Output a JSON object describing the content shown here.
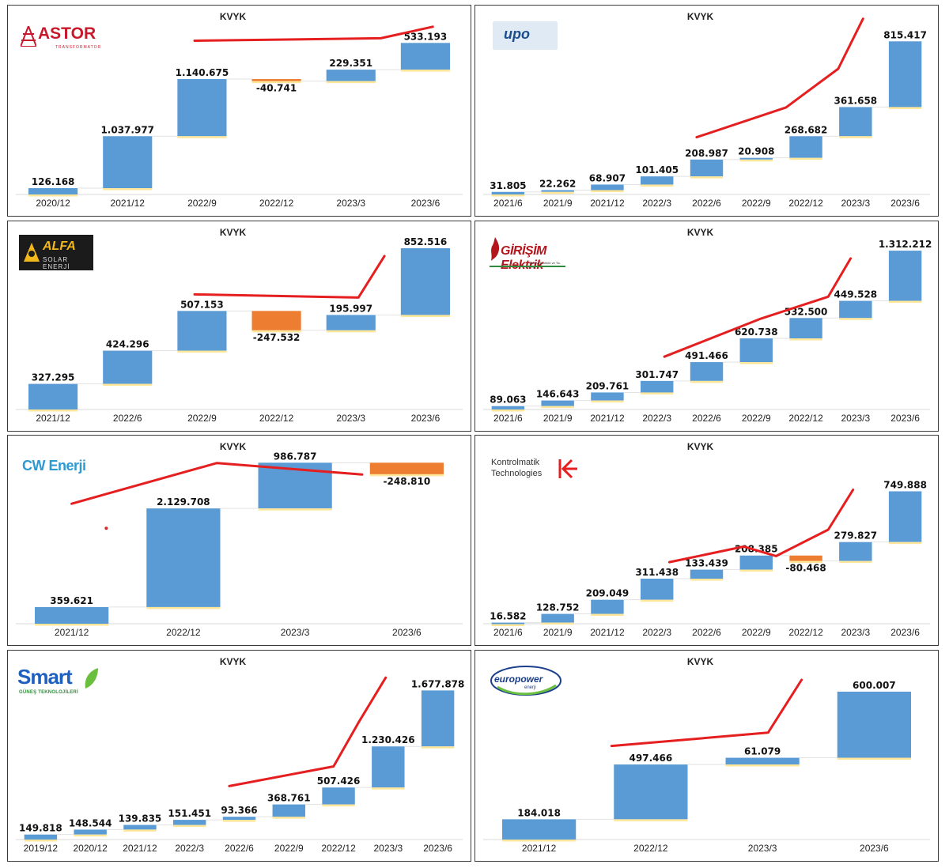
{
  "colors": {
    "increase": "#5b9bd5",
    "decrease": "#ed7d31",
    "connector": "#e2e2e2",
    "bar_shadow": "#ffe699",
    "trend": "#e51f20",
    "axis": "#d9d9d9"
  },
  "chart_data": [
    {
      "company": "ASTOR",
      "logo_text": "ASTOR",
      "logo_subtext": "TRANSFORMATOR",
      "type": "waterfall",
      "title": "KVYK",
      "categories": [
        "2020/12",
        "2021/12",
        "2022/9",
        "2022/12",
        "2023/3",
        "2023/6"
      ],
      "values": [
        126168,
        1037977,
        1140675,
        -40741,
        229351,
        533193
      ],
      "labels": [
        "126.168",
        "1.037.977",
        "1.140.675",
        "-40.741",
        "229.351",
        "533.193"
      ],
      "ylim": [
        0,
        3300000
      ],
      "trend_line": [
        [
          2.4,
          3071000
        ],
        [
          4.9,
          3120000
        ],
        [
          5.6,
          3350000
        ]
      ]
    },
    {
      "company": "UPO",
      "logo_text": "upo",
      "type": "waterfall",
      "title": "KVYK",
      "categories": [
        "2021/6",
        "2021/9",
        "2021/12",
        "2022/3",
        "2022/6",
        "2022/9",
        "2022/12",
        "2023/3",
        "2023/6"
      ],
      "values": [
        31805,
        22262,
        68907,
        101405,
        208987,
        20908,
        268682,
        361658,
        815417
      ],
      "labels": [
        "31.805",
        "22.262",
        "68.907",
        "101.405",
        "208.987",
        "20.908",
        "268.682",
        "361.658",
        "815.417"
      ],
      "ylim": [
        0,
        2050000
      ],
      "trend_line": [
        [
          4.3,
          710000
        ],
        [
          6.1,
          1080000
        ],
        [
          7.15,
          1560000
        ],
        [
          7.65,
          2180000
        ]
      ]
    },
    {
      "company": "ALFA Solar Enerji",
      "logo_text": "ALFA",
      "logo_subtext": "SOLAR ENERJİ",
      "type": "waterfall",
      "title": "KVYK",
      "categories": [
        "2021/12",
        "2022/6",
        "2022/9",
        "2022/12",
        "2023/3",
        "2023/6"
      ],
      "values": [
        327295,
        424296,
        507153,
        -247532,
        195997,
        852516
      ],
      "labels": [
        "327.295",
        "424.296",
        "507.153",
        "-247.532",
        "195.997",
        "852.516"
      ],
      "ylim": [
        0,
        2100000
      ],
      "trend_line": [
        [
          2.4,
          1470000
        ],
        [
          4.6,
          1430000
        ],
        [
          4.95,
          1960000
        ]
      ]
    },
    {
      "company": "Girişim Elektrik",
      "logo_text": "GİRİŞİM Elektrik",
      "logo_subtext": "Sanayi Taahhüt ve Tic. A.Ş.",
      "type": "waterfall",
      "title": "KVYK",
      "categories": [
        "2021/6",
        "2021/9",
        "2021/12",
        "2022/3",
        "2022/6",
        "2022/9",
        "2022/12",
        "2023/3",
        "2023/6"
      ],
      "values": [
        89063,
        146643,
        209761,
        301747,
        491466,
        620738,
        532500,
        449528,
        1312212
      ],
      "labels": [
        "89.063",
        "146.643",
        "209.761",
        "301.747",
        "491.466",
        "620.738",
        "532.500",
        "449.528",
        "1.312.212"
      ],
      "ylim": [
        0,
        4300000
      ],
      "trend_line": [
        [
          3.65,
          1380000
        ],
        [
          5.6,
          2380000
        ],
        [
          6.95,
          2950000
        ],
        [
          7.4,
          3950000
        ]
      ]
    },
    {
      "company": "CW Enerji",
      "logo_text": "CW Enerji",
      "type": "waterfall",
      "title": "KVYK",
      "categories": [
        "2021/12",
        "2022/12",
        "2023/3",
        "2023/6"
      ],
      "values": [
        359621,
        2129708,
        986787,
        -248810
      ],
      "labels": [
        "359.621",
        "2.129.708",
        "986.787",
        "-248.810"
      ],
      "ylim": [
        0,
        3550000
      ],
      "trend_line": [
        [
          0.5,
          2590000
        ],
        [
          1.8,
          3470000
        ],
        [
          3.1,
          3220000
        ]
      ]
    },
    {
      "company": "Kontrolmatik Technologies",
      "logo_text": "Kontrolmatik",
      "logo_subtext": "Technologies",
      "type": "waterfall",
      "title": "KVYK",
      "categories": [
        "2021/6",
        "2021/9",
        "2021/12",
        "2022/3",
        "2022/6",
        "2022/9",
        "2022/12",
        "2023/3",
        "2023/6"
      ],
      "values": [
        16582,
        128752,
        209049,
        311438,
        133439,
        208385,
        -80468,
        279827,
        749888
      ],
      "labels": [
        "16.582",
        "128.752",
        "209.049",
        "311.438",
        "133.439",
        "208.385",
        "-80.468",
        "279.827",
        "749.888"
      ],
      "ylim": [
        0,
        2430000
      ],
      "trend_line": [
        [
          3.75,
          910000
        ],
        [
          5.25,
          1140000
        ],
        [
          5.9,
          1000000
        ],
        [
          6.95,
          1390000
        ],
        [
          7.45,
          1980000
        ]
      ]
    },
    {
      "company": "Smart Güneş Teknolojileri",
      "logo_text": "Smart",
      "logo_subtext": "GÜNEŞ TEKNOLOJİLERİ",
      "type": "waterfall",
      "title": "KVYK",
      "categories": [
        "2019/12",
        "2020/12",
        "2021/12",
        "2022/3",
        "2022/6",
        "2022/9",
        "2022/12",
        "2023/3",
        "2023/6"
      ],
      "values": [
        149818,
        148544,
        139835,
        151451,
        93366,
        368761,
        507426,
        1230426,
        1677878
      ],
      "labels": [
        "149.818",
        "148.544",
        "139.835",
        "151.451",
        "93.366",
        "368.761",
        "507.426",
        "1.230.426",
        "1.677.878"
      ],
      "ylim": [
        0,
        4950000
      ],
      "trend_line": [
        [
          4.3,
          1600000
        ],
        [
          6.4,
          2190000
        ],
        [
          6.9,
          3500000
        ],
        [
          7.45,
          4850000
        ]
      ]
    },
    {
      "company": "Europower Enerji",
      "logo_text": "europower",
      "logo_subtext": "enerji",
      "type": "waterfall",
      "title": "KVYK",
      "categories": [
        "2021/12",
        "2022/12",
        "2023/3",
        "2023/6"
      ],
      "values": [
        184018,
        497466,
        61079,
        600007
      ],
      "labels": [
        "184.018",
        "497.466",
        "61.079",
        "600.007"
      ],
      "ylim": [
        0,
        1500000
      ],
      "trend_line": [
        [
          1.15,
          850000
        ],
        [
          2.55,
          970000
        ],
        [
          2.85,
          1450000
        ]
      ]
    }
  ]
}
